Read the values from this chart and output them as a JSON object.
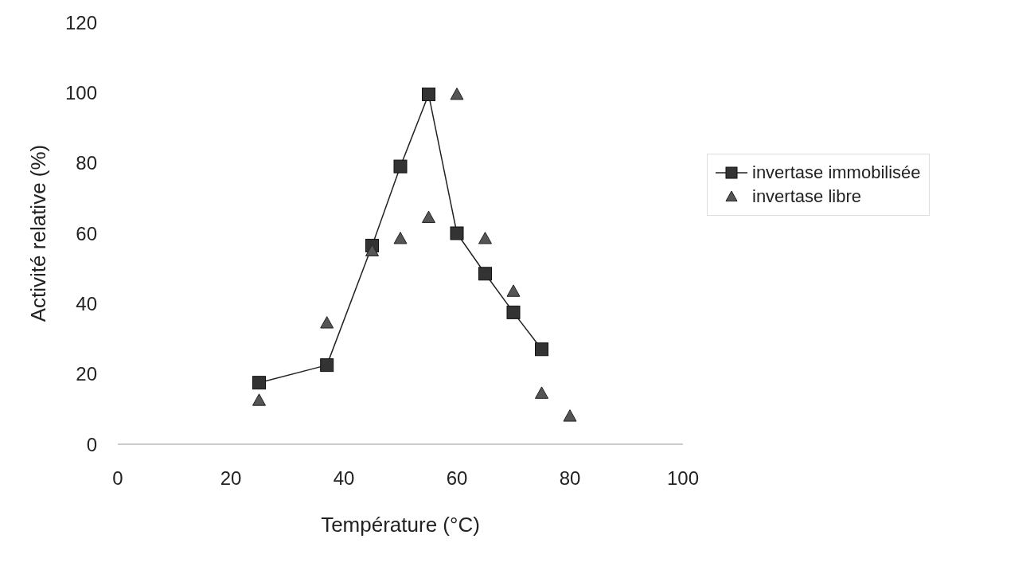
{
  "chart_data": {
    "type": "line",
    "xlabel": "Température (°C)",
    "ylabel": "Activité relative (%)",
    "xlim": [
      0,
      100
    ],
    "xticks": [
      0,
      20,
      40,
      60,
      80,
      100
    ],
    "ylim": [
      0,
      120
    ],
    "yticks": [
      0,
      20,
      40,
      60,
      80,
      100,
      120
    ],
    "grid": false,
    "legend": "right",
    "series": [
      {
        "name": "invertase immobilisée",
        "marker": "square",
        "color": "#333333",
        "x": [
          25,
          37,
          45,
          50,
          55,
          60,
          65,
          70,
          75
        ],
        "values": [
          17.5,
          22.5,
          56.5,
          79,
          99.5,
          60,
          48.5,
          37.5,
          27
        ]
      },
      {
        "name": "invertase libre",
        "type": "scatter",
        "marker": "triangle",
        "color": "#555555",
        "x": [
          25,
          37,
          45,
          50,
          55,
          60,
          65,
          70,
          75,
          80
        ],
        "values": [
          12.5,
          34.5,
          55,
          58.5,
          64.5,
          99.5,
          58.5,
          43.5,
          14.5,
          8
        ]
      }
    ]
  }
}
